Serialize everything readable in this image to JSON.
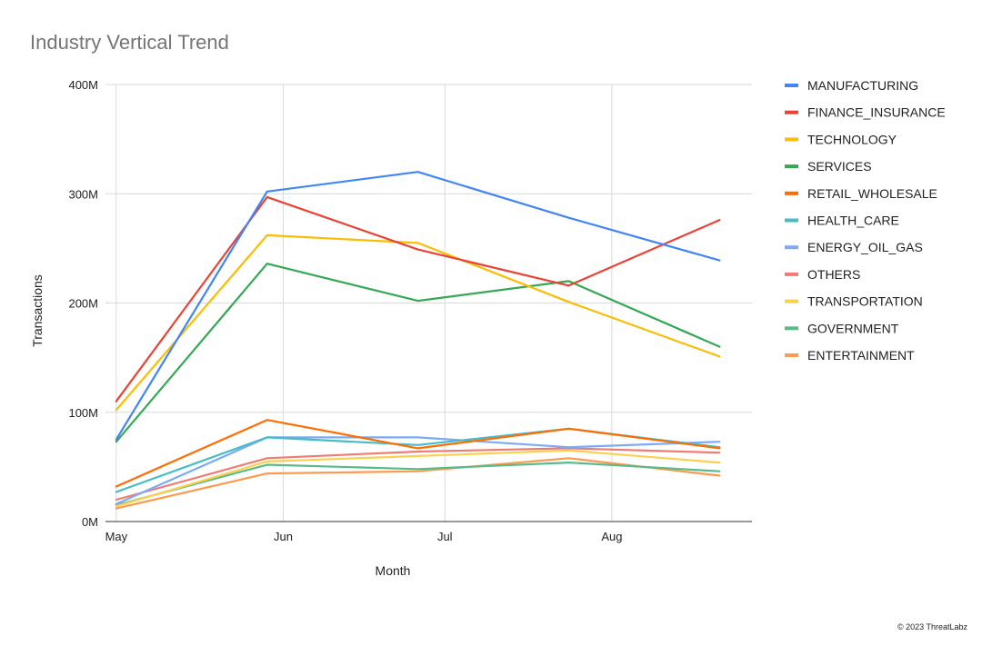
{
  "chart_data": {
    "type": "line",
    "title": "Industry Vertical Trend",
    "xlabel": "Month",
    "ylabel": "Transactions",
    "ylim": [
      0,
      400000000
    ],
    "y_ticks": [
      {
        "value": 0,
        "label": "0M"
      },
      {
        "value": 100000000,
        "label": "100M"
      },
      {
        "value": 200000000,
        "label": "200M"
      },
      {
        "value": 300000000,
        "label": "300M"
      },
      {
        "value": 400000000,
        "label": "400M"
      }
    ],
    "x": [
      "2023-05-01",
      "2023-05-29",
      "2023-06-26",
      "2023-07-24",
      "2023-08-21"
    ],
    "x_ticks": [
      {
        "value": "2023-05-01",
        "label": "May"
      },
      {
        "value": "2023-06-01",
        "label": "Jun"
      },
      {
        "value": "2023-07-01",
        "label": "Jul"
      },
      {
        "value": "2023-08-01",
        "label": "Aug"
      }
    ],
    "grid": true,
    "legend": "right",
    "series": [
      {
        "name": "MANUFACTURING",
        "color": "#4285f4",
        "values": [
          75000000,
          302000000,
          320000000,
          278000000,
          239000000
        ]
      },
      {
        "name": "FINANCE_INSURANCE",
        "color": "#ea4335",
        "values": [
          110000000,
          297000000,
          249000000,
          216000000,
          276000000
        ]
      },
      {
        "name": "TECHNOLOGY",
        "color": "#fbbc04",
        "values": [
          102000000,
          262000000,
          255000000,
          201000000,
          151000000
        ]
      },
      {
        "name": "SERVICES",
        "color": "#34a853",
        "values": [
          73000000,
          236000000,
          202000000,
          220000000,
          160000000
        ]
      },
      {
        "name": "RETAIL_WHOLESALE",
        "color": "#ff6d01",
        "values": [
          32000000,
          93000000,
          67000000,
          85000000,
          67000000
        ]
      },
      {
        "name": "HEALTH_CARE",
        "color": "#46bdc6",
        "values": [
          27000000,
          77000000,
          70000000,
          85000000,
          68000000
        ]
      },
      {
        "name": "ENERGY_OIL_GAS",
        "color": "#7baaf7",
        "values": [
          16000000,
          77000000,
          77000000,
          68000000,
          73000000
        ]
      },
      {
        "name": "OTHERS",
        "color": "#f07b72",
        "values": [
          20000000,
          58000000,
          64000000,
          67000000,
          63000000
        ]
      },
      {
        "name": "TRANSPORTATION",
        "color": "#fcd04f",
        "values": [
          14000000,
          55000000,
          60000000,
          65000000,
          54000000
        ]
      },
      {
        "name": "GOVERNMENT",
        "color": "#57bb8a",
        "values": [
          15000000,
          52000000,
          48000000,
          54000000,
          46000000
        ]
      },
      {
        "name": "ENTERTAINMENT",
        "color": "#ff994d",
        "values": [
          12000000,
          44000000,
          46000000,
          58000000,
          42000000
        ]
      }
    ]
  },
  "footer": {
    "copyright": "© 2023 ThreatLabz"
  }
}
